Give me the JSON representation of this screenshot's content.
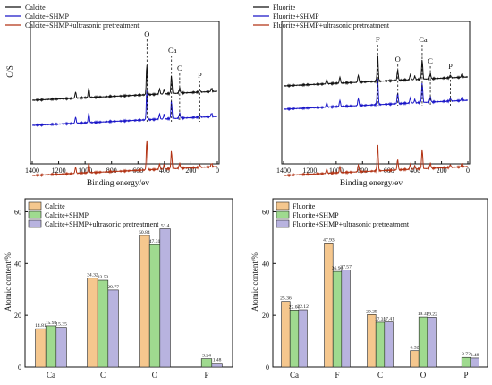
{
  "colors": {
    "calcite": "#f5c78e",
    "shmp": "#9fda8f",
    "ultra": "#b8b3df",
    "line_black": "#111111",
    "line_blue": "#1a16c8",
    "line_red": "#b23314"
  },
  "chart_data": [
    {
      "type": "line",
      "xlabel": "Binding energy/ev",
      "ylabel": "C/S",
      "xlim": [
        1400,
        0
      ],
      "xticks": [
        "1400",
        "1200",
        "1000",
        "800",
        "600",
        "400",
        "200",
        "0"
      ],
      "series": [
        {
          "name": "Calcite",
          "color": "line_black"
        },
        {
          "name": "Calcite+SHMP",
          "color": "line_blue"
        },
        {
          "name": "Calcite+SHMP+ultrasonic pretreatment",
          "color": "line_red"
        }
      ],
      "annotations": [
        {
          "text": "O",
          "x": 532
        },
        {
          "text": "Ca",
          "x": 347
        },
        {
          "text": "C",
          "x": 285
        },
        {
          "text": "P",
          "x": 133
        }
      ]
    },
    {
      "type": "line",
      "xlabel": "Binding energy/ev",
      "ylabel": "",
      "xlim": [
        1400,
        0
      ],
      "xticks": [
        "1400",
        "1200",
        "1000",
        "800",
        "600",
        "400",
        "200",
        "0"
      ],
      "series": [
        {
          "name": "Fluorite",
          "color": "line_black"
        },
        {
          "name": "Fluorite+SHMP",
          "color": "line_blue"
        },
        {
          "name": "Fluorite+SHMP+ultrasonic pretreatment",
          "color": "line_red"
        }
      ],
      "annotations": [
        {
          "text": "F",
          "x": 685
        },
        {
          "text": "O",
          "x": 532
        },
        {
          "text": "Ca",
          "x": 347
        },
        {
          "text": "C",
          "x": 285
        },
        {
          "text": "P",
          "x": 133
        }
      ]
    },
    {
      "type": "bar",
      "ylabel": "Atomic content/%",
      "ylim": [
        0,
        65
      ],
      "yticks": [
        "0",
        "20",
        "40",
        "60"
      ],
      "categories": [
        "Ca",
        "C",
        "O",
        "P"
      ],
      "series": [
        {
          "name": "Calcite",
          "color": "calcite",
          "values": [
            14.81,
            34.32,
            50.84,
            0
          ],
          "labels": [
            "14.81",
            "34.32",
            "50.84",
            ""
          ]
        },
        {
          "name": "Calcite+SHMP",
          "color": "shmp",
          "values": [
            15.93,
            33.53,
            47.31,
            3.24
          ],
          "labels": [
            "15.93",
            "33.53",
            "47.31",
            "3.24"
          ]
        },
        {
          "name": "Calcite+SHMP+ultrasonic pretreatment",
          "color": "ultra",
          "values": [
            15.35,
            29.77,
            53.4,
            1.48
          ],
          "labels": [
            "15.35",
            "29.77",
            "53.4",
            "1.48"
          ]
        }
      ]
    },
    {
      "type": "bar",
      "ylabel": "Atomic content/%",
      "ylim": [
        0,
        65
      ],
      "yticks": [
        "0",
        "20",
        "40",
        "60"
      ],
      "categories": [
        "Ca",
        "F",
        "C",
        "O",
        "P"
      ],
      "series": [
        {
          "name": "Fluorite",
          "color": "calcite",
          "values": [
            25.36,
            47.93,
            20.29,
            6.32,
            0
          ],
          "labels": [
            "25.36",
            "47.93",
            "20.29",
            "6.32",
            ""
          ]
        },
        {
          "name": "Fluorite+SHMP",
          "color": "shmp",
          "values": [
            22.01,
            36.96,
            17.31,
            19.33,
            3.72
          ],
          "labels": [
            "22.01",
            "36.96",
            "17.31",
            "19.33",
            "3.72"
          ]
        },
        {
          "name": "Fluorite+SHMP+ultrasonic pretreatment",
          "color": "ultra",
          "values": [
            22.12,
            37.57,
            17.41,
            19.22,
            3.48
          ],
          "labels": [
            "22.12",
            "37.57",
            "17.41",
            "19.22",
            "3.48"
          ]
        }
      ]
    }
  ]
}
